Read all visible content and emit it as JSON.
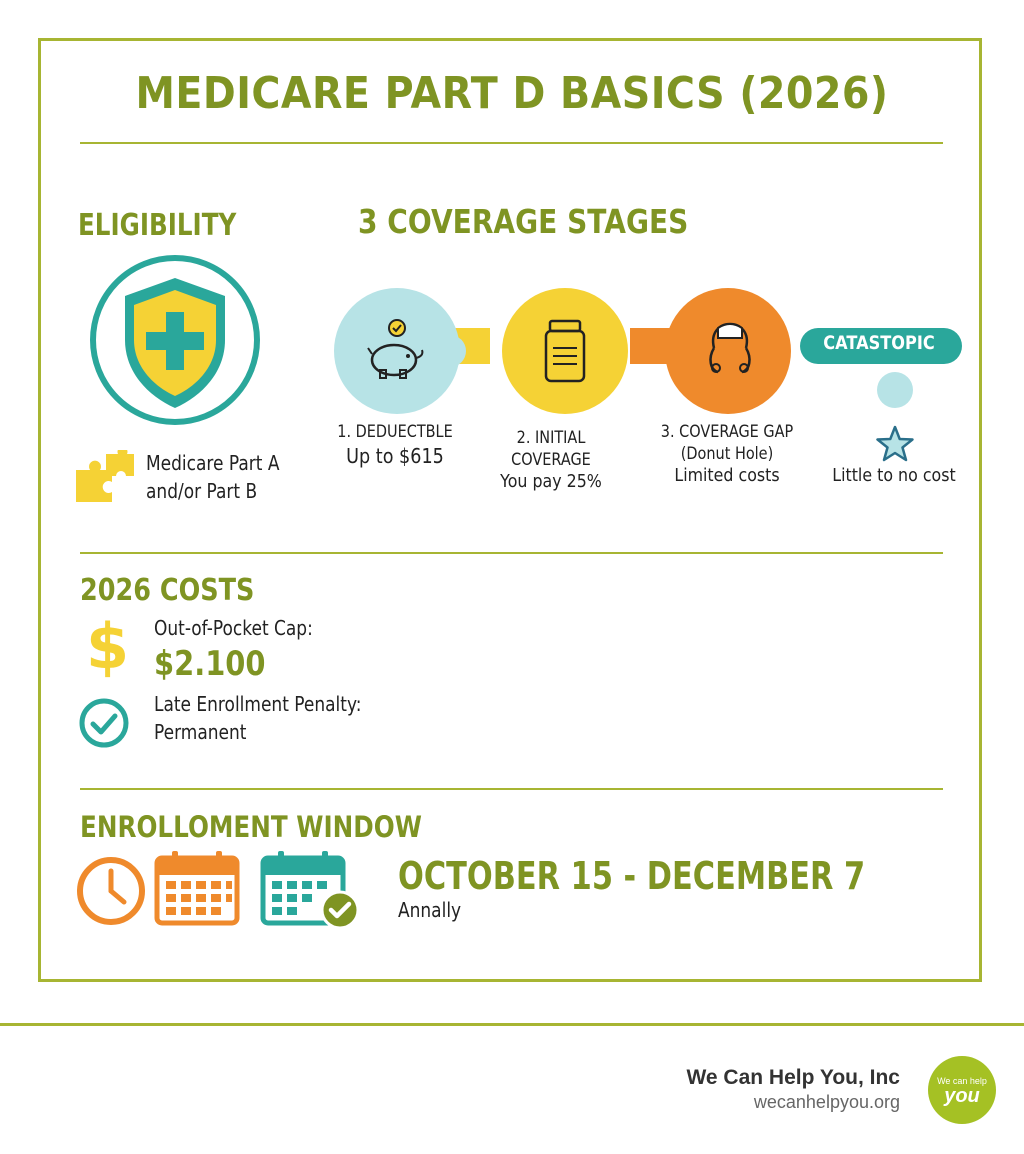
{
  "title": "MEDICARE PART D BASICS (2026)",
  "eligibility": {
    "heading": "ELIGIBILITY",
    "line1": "Medicare Part A",
    "line2": "and/or Part B"
  },
  "coverage": {
    "heading": "3 COVERAGE STAGES",
    "catastrophic_label": "CATASTOPIC",
    "stages": [
      {
        "line1": "1. DEDUECTBLE",
        "line2": "Up to $615",
        "line3": ""
      },
      {
        "line1": "2. INITIAL",
        "line2": "COVERAGE",
        "line3": "You pay 25%"
      },
      {
        "line1": "3. COVERAGE GAP",
        "line2": "(Donut Hole)",
        "line3": "Limited costs"
      },
      {
        "line1": "Little to no cost",
        "line2": "",
        "line3": ""
      }
    ]
  },
  "costs": {
    "heading": "2026 COSTS",
    "cap_label": "Out-of-Pocket Cap:",
    "cap_value": "$2.100",
    "penalty_label": "Late Enrollment Penalty:",
    "penalty_value": "Permanent"
  },
  "enrollment": {
    "heading": "ENROLLOMENT WINDOW",
    "dates": "OCTOBER 15 - DECEMBER 7",
    "frequency": "Annally"
  },
  "footer": {
    "company": "We Can Help You, Inc",
    "website": "wecanhelpyou.org",
    "logo_top": "We can help",
    "logo_bottom": "you"
  },
  "colors": {
    "olive": "#7f9423",
    "teal": "#2aa79b",
    "yellow": "#f5d235",
    "orange": "#ef8a2c",
    "light_blue": "#b7e3e6"
  }
}
